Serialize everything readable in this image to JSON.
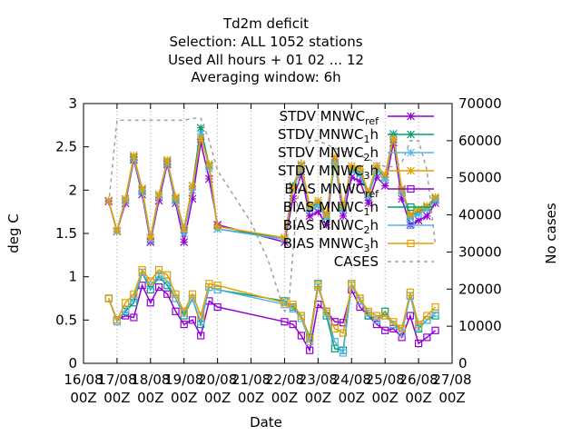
{
  "chart_data": {
    "type": "line",
    "title_lines": [
      "Td2m deficit",
      "Selection: ALL    1052 stations",
      "Used  All hours  + 01 02 ... 12",
      "Averaging window:  6h"
    ],
    "xlabel": "Date",
    "ylabel": "deg C",
    "y2label": "No cases",
    "xlim": [
      16.0,
      27.0
    ],
    "ylim": [
      0,
      3
    ],
    "y2lim": [
      0,
      70000
    ],
    "xticks": [
      {
        "x": 16,
        "line1": "16/08",
        "line2": "00Z"
      },
      {
        "x": 17,
        "line1": "17/08",
        "line2": "00Z"
      },
      {
        "x": 18,
        "line1": "18/08",
        "line2": "00Z"
      },
      {
        "x": 19,
        "line1": "19/08",
        "line2": "00Z"
      },
      {
        "x": 20,
        "line1": "20/08",
        "line2": "00Z"
      },
      {
        "x": 21,
        "line1": "21/08",
        "line2": "00Z"
      },
      {
        "x": 22,
        "line1": "22/08",
        "line2": "00Z"
      },
      {
        "x": 23,
        "line1": "23/08",
        "line2": "00Z"
      },
      {
        "x": 24,
        "line1": "24/08",
        "line2": "00Z"
      },
      {
        "x": 25,
        "line1": "25/08",
        "line2": "00Z"
      },
      {
        "x": 26,
        "line1": "26/08",
        "line2": "00Z"
      },
      {
        "x": 27,
        "line1": "27/08",
        "line2": "00Z"
      }
    ],
    "yticks": [
      "0",
      "0.5",
      "1",
      "1.5",
      "2",
      "2.5",
      "3"
    ],
    "y2ticks": [
      "0",
      "10000",
      "20000",
      "30000",
      "40000",
      "50000",
      "60000",
      "70000"
    ],
    "legend_position": "top-right",
    "x": [
      16.75,
      17.0,
      17.25,
      17.5,
      17.75,
      18.0,
      18.25,
      18.5,
      18.75,
      19.0,
      19.25,
      19.5,
      19.75,
      20.0,
      22.0,
      22.25,
      22.5,
      22.75,
      23.0,
      23.25,
      23.5,
      23.75,
      24.0,
      24.25,
      24.5,
      24.75,
      25.0,
      25.25,
      25.5,
      25.75,
      26.0,
      26.25,
      26.5
    ],
    "series": [
      {
        "name": "STDV MNWC_ref",
        "label_main": "STDV MNWC",
        "label_sub": "ref",
        "axis": "y",
        "color": "#9400d3",
        "marker": "star",
        "values": [
          1.87,
          1.52,
          1.85,
          2.35,
          1.95,
          1.4,
          1.88,
          2.3,
          1.85,
          1.4,
          1.9,
          2.55,
          2.13,
          1.6,
          1.4,
          1.9,
          2.18,
          1.7,
          1.75,
          1.6,
          2.35,
          1.7,
          2.15,
          2.1,
          1.85,
          2.15,
          2.05,
          2.55,
          1.9,
          1.6,
          1.65,
          1.7,
          1.85
        ]
      },
      {
        "name": "STDV MNWC_1h",
        "label_main": "STDV MNWC",
        "label_sub": "1",
        "label_suffix": "h",
        "axis": "y",
        "color": "#009e73",
        "marker": "star",
        "values": [
          1.88,
          1.53,
          1.9,
          2.38,
          2.0,
          1.45,
          1.95,
          2.33,
          1.9,
          1.55,
          2.05,
          2.72,
          2.28,
          1.55,
          1.45,
          2.05,
          2.28,
          1.8,
          1.85,
          1.7,
          2.3,
          1.8,
          2.25,
          2.2,
          1.95,
          2.25,
          2.15,
          2.65,
          2.0,
          1.7,
          1.75,
          1.8,
          1.9
        ]
      },
      {
        "name": "STDV MNWC_2h",
        "label_main": "STDV MNWC",
        "label_sub": "2",
        "label_suffix": "h",
        "axis": "y",
        "color": "#56b4e9",
        "marker": "star",
        "values": [
          1.88,
          1.52,
          1.88,
          2.37,
          1.98,
          1.42,
          1.93,
          2.32,
          1.88,
          1.5,
          2.0,
          2.65,
          2.25,
          1.55,
          1.43,
          2.0,
          2.25,
          1.78,
          1.82,
          1.68,
          2.32,
          1.78,
          2.22,
          2.18,
          1.93,
          2.22,
          2.12,
          2.62,
          1.98,
          1.68,
          1.72,
          1.78,
          1.88
        ]
      },
      {
        "name": "STDV MNWC_3h",
        "label_main": "STDV MNWC",
        "label_sub": "3",
        "label_suffix": "h",
        "axis": "y",
        "color": "#e69f00",
        "marker": "star",
        "values": [
          1.88,
          1.53,
          1.9,
          2.4,
          2.02,
          1.45,
          1.95,
          2.35,
          1.92,
          1.55,
          2.05,
          2.6,
          2.3,
          1.58,
          1.45,
          2.02,
          2.3,
          1.82,
          1.88,
          1.72,
          2.38,
          1.82,
          2.28,
          2.25,
          1.98,
          2.28,
          2.18,
          2.6,
          2.02,
          1.72,
          1.78,
          1.82,
          1.92
        ]
      },
      {
        "name": "BIAS MNWC_ref",
        "label_main": "BIAS MNWC",
        "label_sub": "ref",
        "axis": "y",
        "color": "#9400d3",
        "marker": "square",
        "values": [
          0.75,
          0.5,
          0.55,
          0.53,
          0.9,
          0.7,
          0.88,
          0.8,
          0.6,
          0.45,
          0.5,
          0.32,
          0.72,
          0.65,
          0.48,
          0.45,
          0.32,
          0.15,
          0.68,
          0.6,
          0.48,
          0.47,
          0.85,
          0.65,
          0.55,
          0.45,
          0.38,
          0.4,
          0.3,
          0.55,
          0.23,
          0.3,
          0.38
        ]
      },
      {
        "name": "BIAS MNWC_1h",
        "label_main": "BIAS MNWC",
        "label_sub": "1",
        "label_suffix": "h",
        "axis": "y",
        "color": "#009e73",
        "marker": "square",
        "values": [
          0.75,
          0.5,
          0.6,
          0.7,
          1.05,
          0.85,
          1.0,
          0.9,
          0.75,
          0.55,
          0.75,
          0.45,
          0.88,
          0.85,
          0.72,
          0.65,
          0.55,
          0.3,
          0.92,
          0.55,
          0.17,
          0.15,
          0.92,
          0.75,
          0.55,
          0.5,
          0.6,
          0.45,
          0.4,
          0.78,
          0.4,
          0.5,
          0.55
        ]
      },
      {
        "name": "BIAS MNWC_2h",
        "label_main": "BIAS MNWC",
        "label_sub": "2",
        "label_suffix": "h",
        "axis": "y",
        "color": "#56b4e9",
        "marker": "square",
        "values": [
          0.75,
          0.48,
          0.62,
          0.75,
          1.05,
          0.9,
          1.02,
          0.95,
          0.75,
          0.58,
          0.75,
          0.48,
          0.88,
          0.85,
          0.68,
          0.63,
          0.52,
          0.25,
          0.88,
          0.58,
          0.25,
          0.12,
          0.9,
          0.72,
          0.58,
          0.5,
          0.55,
          0.45,
          0.35,
          0.78,
          0.42,
          0.5,
          0.58
        ]
      },
      {
        "name": "BIAS MNWC_3h",
        "label_main": "BIAS MNWC",
        "label_sub": "3",
        "label_suffix": "h",
        "axis": "y",
        "color": "#e69f00",
        "marker": "square",
        "values": [
          0.75,
          0.5,
          0.7,
          0.8,
          1.08,
          0.95,
          1.08,
          1.02,
          0.8,
          0.6,
          0.8,
          0.55,
          0.92,
          0.9,
          0.7,
          0.68,
          0.55,
          0.28,
          0.9,
          0.6,
          0.4,
          0.35,
          0.92,
          0.75,
          0.6,
          0.55,
          0.55,
          0.48,
          0.4,
          0.82,
          0.45,
          0.55,
          0.65
        ]
      },
      {
        "name": "CASES",
        "label_main": "CASES",
        "axis": "y2",
        "color": "#a0a0a0",
        "marker": "none",
        "dashed": true,
        "x": [
          16.75,
          17.0,
          17.25,
          17.5,
          17.75,
          18.0,
          18.25,
          18.5,
          18.75,
          19.0,
          19.25,
          19.5,
          19.75,
          20.0,
          20.5,
          21.0,
          21.5,
          22.0,
          22.12,
          22.25,
          22.5,
          22.75,
          23.0,
          23.25,
          23.5,
          23.75,
          24.0,
          24.25,
          24.5,
          24.75,
          25.0,
          25.25,
          25.5,
          25.75,
          26.0,
          26.25,
          26.5
        ],
        "values": [
          43000,
          65500,
          65500,
          65500,
          65500,
          65500,
          65500,
          65500,
          65500,
          65500,
          66000,
          66000,
          60000,
          52000,
          45000,
          38000,
          28000,
          14000,
          15000,
          30000,
          55000,
          60000,
          60000,
          59000,
          58000,
          57000,
          57000,
          56000,
          55000,
          54000,
          53000,
          53000,
          54000,
          60000,
          60000,
          52000,
          32000
        ]
      }
    ]
  }
}
